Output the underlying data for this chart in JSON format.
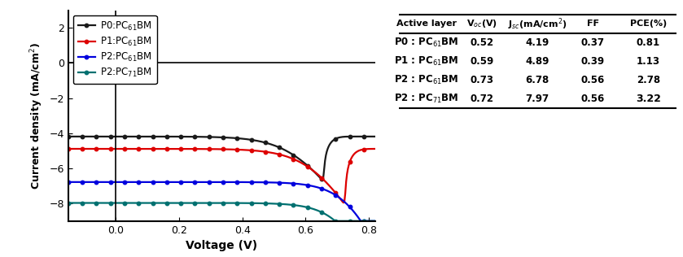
{
  "curves": [
    {
      "label": "P0:PC$_{61}$BM",
      "color": "#1a1a1a",
      "Voc": 0.52,
      "Jsc": -4.19,
      "n": 2.5,
      "J0": 1e-05,
      "Rs": 25
    },
    {
      "label": "P1:PC$_{61}$BM",
      "color": "#dd0000",
      "Voc": 0.59,
      "Jsc": -4.89,
      "n": 2.5,
      "J0": 1e-05,
      "Rs": 20
    },
    {
      "label": "P2:PC$_{61}$BM",
      "color": "#0000dd",
      "Voc": 0.73,
      "Jsc": -6.78,
      "n": 2.2,
      "J0": 1e-06,
      "Rs": 12
    },
    {
      "label": "P2:PC$_{71}$BM",
      "color": "#007070",
      "Voc": 0.72,
      "Jsc": -7.97,
      "n": 2.2,
      "J0": 1e-06,
      "Rs": 10
    }
  ],
  "xlim": [
    -0.15,
    0.82
  ],
  "ylim": [
    -9,
    3
  ],
  "xlabel": "Voltage (V)",
  "xticks": [
    0.0,
    0.2,
    0.4,
    0.6,
    0.8
  ],
  "yticks": [
    -8,
    -6,
    -4,
    -2,
    0,
    2
  ],
  "table_headers": [
    "Active layer",
    "V$_{oc}$(V)",
    "J$_{sc}$(mA/cm$^{2}$)",
    "FF",
    "PCE(%)"
  ],
  "table_rows": [
    [
      "P0 : PC$_{61}$BM",
      "0.52",
      "4.19",
      "0.37",
      "0.81"
    ],
    [
      "P1 : PC$_{61}$BM",
      "0.59",
      "4.89",
      "0.39",
      "1.13"
    ],
    [
      "P2 : PC$_{61}$BM",
      "0.73",
      "6.78",
      "0.56",
      "2.78"
    ],
    [
      "P2 : PC$_{71}$BM",
      "0.72",
      "7.97",
      "0.56",
      "3.22"
    ]
  ]
}
